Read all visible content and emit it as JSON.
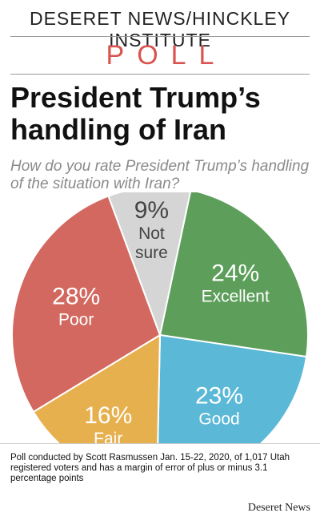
{
  "header": {
    "source": "DESERET NEWS/HINCKLEY INSTITUTE",
    "poll_label": "POLL"
  },
  "title": "President Trump’s handling of Iran",
  "question": "How do you rate President Trump’s handling of the situation with Iran?",
  "chart_data": {
    "type": "pie",
    "slices": [
      {
        "label": "Excellent",
        "value": 24,
        "display": "24%",
        "color": "#5c9e5a",
        "text_color": "#ffffff"
      },
      {
        "label": "Good",
        "value": 23,
        "display": "23%",
        "color": "#5bb8d6",
        "text_color": "#ffffff"
      },
      {
        "label": "Fair",
        "value": 16,
        "display": "16%",
        "color": "#e7b04f",
        "text_color": "#ffffff"
      },
      {
        "label": "Poor",
        "value": 28,
        "display": "28%",
        "color": "#d2685f",
        "text_color": "#ffffff"
      },
      {
        "label": "Not sure",
        "value": 9,
        "display": "9%",
        "color": "#d5d5d5",
        "text_color": "#444444"
      }
    ]
  },
  "footnote": "Poll conducted by Scott Rasmussen Jan. 15-22, 2020, of 1,017 Utah registered voters and has a margin of error of plus or minus 3.1 percentage points",
  "brand": "Deseret News"
}
